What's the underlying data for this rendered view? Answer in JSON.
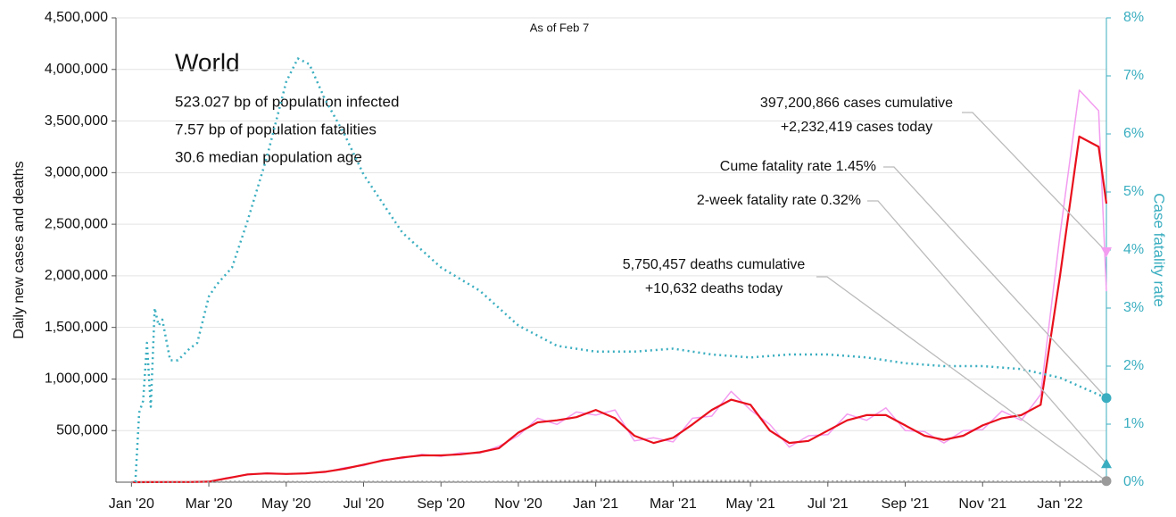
{
  "chart_data": {
    "type": "line",
    "subtitle": "As of Feb 7",
    "info": {
      "title": "World",
      "lines": [
        "523.027 bp of population infected",
        "7.57 bp of population fatalities",
        "30.6 median population age"
      ]
    },
    "ylabel": "Daily new cases and deaths",
    "y2label": "Case fatality rate",
    "grid": true,
    "xlim": [
      -0.4,
      25.2
    ],
    "xticks": [
      {
        "value": 0,
        "label": "Jan '20"
      },
      {
        "value": 2,
        "label": "Mar '20"
      },
      {
        "value": 4,
        "label": "May '20"
      },
      {
        "value": 6,
        "label": "Jul '20"
      },
      {
        "value": 8,
        "label": "Sep '20"
      },
      {
        "value": 10,
        "label": "Nov '20"
      },
      {
        "value": 12,
        "label": "Jan '21"
      },
      {
        "value": 14,
        "label": "Mar '21"
      },
      {
        "value": 16,
        "label": "May '21"
      },
      {
        "value": 18,
        "label": "Jul '21"
      },
      {
        "value": 20,
        "label": "Sep '21"
      },
      {
        "value": 22,
        "label": "Nov '21"
      },
      {
        "value": 24,
        "label": "Jan '22"
      }
    ],
    "ylim": [
      0,
      4500000
    ],
    "yticks": [
      {
        "value": 500000,
        "label": "500,000"
      },
      {
        "value": 1000000,
        "label": "1,000,000"
      },
      {
        "value": 1500000,
        "label": "1,500,000"
      },
      {
        "value": 2000000,
        "label": "2,000,000"
      },
      {
        "value": 2500000,
        "label": "2,500,000"
      },
      {
        "value": 3000000,
        "label": "3,000,000"
      },
      {
        "value": 3500000,
        "label": "3,500,000"
      },
      {
        "value": 4000000,
        "label": "4,000,000"
      },
      {
        "value": 4500000,
        "label": "4,500,000"
      }
    ],
    "y2lim": [
      0,
      8
    ],
    "y2ticks": [
      {
        "value": 0,
        "label": "0%"
      },
      {
        "value": 1,
        "label": "1%"
      },
      {
        "value": 2,
        "label": "2%"
      },
      {
        "value": 3,
        "label": "3%"
      },
      {
        "value": 4,
        "label": "4%"
      },
      {
        "value": 5,
        "label": "5%"
      },
      {
        "value": 6,
        "label": "6%"
      },
      {
        "value": 7,
        "label": "7%"
      },
      {
        "value": 8,
        "label": "8%"
      }
    ],
    "x": [
      0,
      0.5,
      1,
      1.5,
      2,
      2.5,
      3,
      3.5,
      4,
      4.5,
      5,
      5.5,
      6,
      6.5,
      7,
      7.5,
      8,
      8.5,
      9,
      9.5,
      10,
      10.5,
      11,
      11.5,
      12,
      12.5,
      13,
      13.5,
      14,
      14.5,
      15,
      15.5,
      16,
      16.5,
      17,
      17.5,
      18,
      18.5,
      19,
      19.5,
      20,
      20.5,
      21,
      21.5,
      22,
      22.5,
      23,
      23.5,
      24,
      24.5,
      25,
      25.2
    ],
    "series": [
      {
        "color": "#f39cf0",
        "width": 1.5,
        "values": [
          0,
          1000,
          2000,
          2500,
          5000,
          45000,
          70000,
          90000,
          78000,
          88000,
          95000,
          140000,
          160000,
          220000,
          230000,
          270000,
          250000,
          285000,
          280000,
          350000,
          450000,
          620000,
          560000,
          680000,
          650000,
          700000,
          400000,
          430000,
          390000,
          620000,
          640000,
          880000,
          700000,
          560000,
          340000,
          450000,
          460000,
          660000,
          600000,
          720000,
          500000,
          490000,
          380000,
          500000,
          510000,
          690000,
          600000,
          850000,
          2400000,
          3800000,
          3600000,
          1850000
        ]
      },
      {
        "color": "#e8101c",
        "width": 2.2,
        "values": [
          0,
          1000,
          2000,
          2000,
          5000,
          40000,
          75000,
          85000,
          80000,
          85000,
          100000,
          130000,
          170000,
          210000,
          240000,
          260000,
          260000,
          270000,
          290000,
          330000,
          480000,
          580000,
          600000,
          630000,
          700000,
          620000,
          450000,
          380000,
          430000,
          560000,
          700000,
          800000,
          750000,
          500000,
          380000,
          400000,
          500000,
          600000,
          650000,
          650000,
          550000,
          450000,
          410000,
          450000,
          550000,
          620000,
          650000,
          750000,
          2000000,
          3350000,
          3250000,
          2700000
        ]
      },
      {
        "color": "#9a9a9a",
        "width": 2,
        "dash": "2 3",
        "values": [
          0,
          0,
          0,
          500,
          3000,
          6000,
          6500,
          6000,
          5000,
          4500,
          4500,
          5000,
          5500,
          6000,
          6000,
          6000,
          5500,
          5500,
          5500,
          6000,
          8000,
          10000,
          11000,
          12000,
          14000,
          13000,
          10000,
          9000,
          10000,
          12000,
          13000,
          13000,
          12000,
          9000,
          8000,
          8500,
          9000,
          10000,
          9500,
          9000,
          8000,
          7000,
          7000,
          7500,
          7500,
          7000,
          7000,
          7000,
          7000,
          8000,
          9000,
          10000
        ]
      },
      {
        "color": "#3aaec0",
        "width": 2.5,
        "dash": "2 4",
        "axis": "y2",
        "x": [
          0.1,
          0.2,
          0.3,
          0.4,
          0.5,
          0.6,
          0.7,
          0.8,
          1.0,
          1.2,
          1.5,
          1.7,
          2.0,
          2.2,
          2.6,
          3.0,
          3.5,
          4.0,
          4.3,
          4.6,
          5.0,
          5.5,
          6,
          7,
          8,
          9,
          10,
          11,
          12,
          13,
          14,
          15,
          16,
          17,
          18,
          19,
          20,
          21,
          22,
          23,
          24,
          25.2
        ],
        "values": [
          0,
          1.2,
          1.4,
          2.4,
          1.3,
          3.0,
          2.7,
          2.8,
          2.1,
          2.1,
          2.3,
          2.4,
          3.2,
          3.4,
          3.7,
          4.5,
          5.6,
          6.9,
          7.3,
          7.2,
          6.6,
          6.0,
          5.3,
          4.3,
          3.7,
          3.3,
          2.7,
          2.35,
          2.25,
          2.25,
          2.3,
          2.2,
          2.15,
          2.2,
          2.2,
          2.15,
          2.05,
          2.0,
          2.0,
          1.95,
          1.8,
          1.45
        ]
      }
    ],
    "annotations": [
      {
        "lines": [
          "397,200,866 cases cumulative",
          "+2,232,419 cases today"
        ],
        "value": 2232419,
        "axis": "y",
        "marker": "tri-down",
        "color": "#f39cf0"
      },
      {
        "lines": [
          "Cume fatality rate 1.45%"
        ],
        "value": 1.45,
        "axis": "y2",
        "marker": "circle",
        "color": "#3aaec0"
      },
      {
        "lines": [
          "2-week fatality rate 0.32%"
        ],
        "value": 0.32,
        "axis": "y2",
        "marker": "tri-up",
        "color": "#3aaec0"
      },
      {
        "lines": [
          "5,750,457 deaths cumulative",
          "+10,632 deaths today"
        ],
        "value": 10632,
        "axis": "y",
        "marker": "circle",
        "color": "#9a9a9a"
      }
    ]
  }
}
